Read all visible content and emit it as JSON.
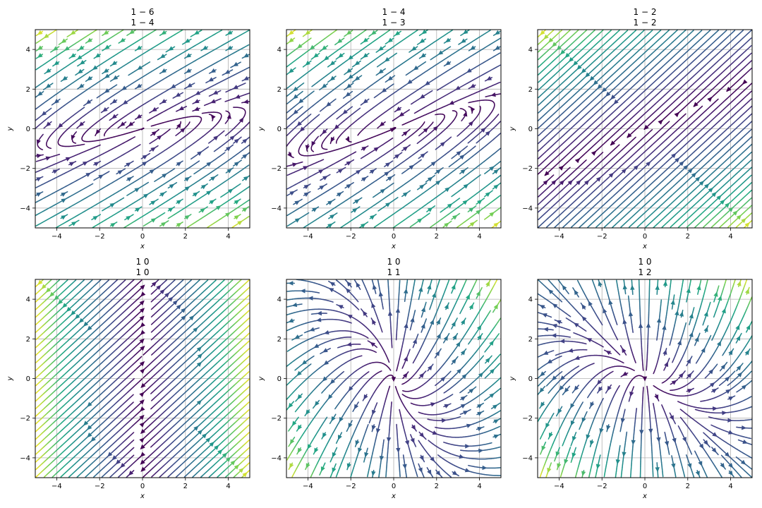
{
  "chart_data": [
    {
      "type": "streamplot",
      "matrix": [
        [
          1,
          -6
        ],
        [
          1,
          -4
        ]
      ],
      "title_rows": [
        "1    − 6",
        "1    − 4"
      ],
      "xlabel": "x",
      "ylabel": "y",
      "xlim": [
        -5,
        5
      ],
      "ylim": [
        -5,
        5
      ],
      "xticks": [
        -4,
        -2,
        0,
        2,
        4
      ],
      "yticks": [
        -4,
        -2,
        0,
        2,
        4
      ],
      "xtick_labels": [
        "−4",
        "−2",
        "0",
        "2",
        "4"
      ],
      "ytick_labels": [
        "−4",
        "−2",
        "0",
        "2",
        "4"
      ],
      "grid": true,
      "colormap": "viridis"
    },
    {
      "type": "streamplot",
      "matrix": [
        [
          1,
          -4
        ],
        [
          1,
          -3
        ]
      ],
      "title_rows": [
        "1    − 4",
        "1    − 3"
      ],
      "xlabel": "x",
      "ylabel": "y",
      "xlim": [
        -5,
        5
      ],
      "ylim": [
        -5,
        5
      ],
      "xticks": [
        -4,
        -2,
        0,
        2,
        4
      ],
      "yticks": [
        -4,
        -2,
        0,
        2,
        4
      ],
      "xtick_labels": [
        "−4",
        "−2",
        "0",
        "2",
        "4"
      ],
      "ytick_labels": [
        "−4",
        "−2",
        "0",
        "2",
        "4"
      ],
      "grid": true,
      "colormap": "viridis"
    },
    {
      "type": "streamplot",
      "matrix": [
        [
          1,
          -2
        ],
        [
          1,
          -2
        ]
      ],
      "title_rows": [
        "1    − 2",
        "1    − 2"
      ],
      "xlabel": "x",
      "ylabel": "y",
      "xlim": [
        -5,
        5
      ],
      "ylim": [
        -5,
        5
      ],
      "xticks": [
        -4,
        -2,
        0,
        2,
        4
      ],
      "yticks": [
        -4,
        -2,
        0,
        2,
        4
      ],
      "xtick_labels": [
        "−4",
        "−2",
        "0",
        "2",
        "4"
      ],
      "ytick_labels": [
        "−4",
        "−2",
        "0",
        "2",
        "4"
      ],
      "grid": true,
      "colormap": "viridis"
    },
    {
      "type": "streamplot",
      "matrix": [
        [
          1,
          0
        ],
        [
          1,
          0
        ]
      ],
      "title_rows": [
        "1    0",
        "1    0"
      ],
      "xlabel": "x",
      "ylabel": "y",
      "xlim": [
        -5,
        5
      ],
      "ylim": [
        -5,
        5
      ],
      "xticks": [
        -4,
        -2,
        0,
        2,
        4
      ],
      "yticks": [
        -4,
        -2,
        0,
        2,
        4
      ],
      "xtick_labels": [
        "−4",
        "−2",
        "0",
        "2",
        "4"
      ],
      "ytick_labels": [
        "−4",
        "−2",
        "0",
        "2",
        "4"
      ],
      "grid": true,
      "colormap": "viridis"
    },
    {
      "type": "streamplot",
      "matrix": [
        [
          1,
          0
        ],
        [
          1,
          1
        ]
      ],
      "title_rows": [
        "1    0",
        "1    1"
      ],
      "xlabel": "x",
      "ylabel": "y",
      "xlim": [
        -5,
        5
      ],
      "ylim": [
        -5,
        5
      ],
      "xticks": [
        -4,
        -2,
        0,
        2,
        4
      ],
      "yticks": [
        -4,
        -2,
        0,
        2,
        4
      ],
      "xtick_labels": [
        "−4",
        "−2",
        "0",
        "2",
        "4"
      ],
      "ytick_labels": [
        "−4",
        "−2",
        "0",
        "2",
        "4"
      ],
      "grid": true,
      "colormap": "viridis"
    },
    {
      "type": "streamplot",
      "matrix": [
        [
          1,
          0
        ],
        [
          1,
          2
        ]
      ],
      "title_rows": [
        "1    0",
        "1    2"
      ],
      "xlabel": "x",
      "ylabel": "y",
      "xlim": [
        -5,
        5
      ],
      "ylim": [
        -5,
        5
      ],
      "xticks": [
        -4,
        -2,
        0,
        2,
        4
      ],
      "yticks": [
        -4,
        -2,
        0,
        2,
        4
      ],
      "xtick_labels": [
        "−4",
        "−2",
        "0",
        "2",
        "4"
      ],
      "ytick_labels": [
        "−4",
        "−2",
        "0",
        "2",
        "4"
      ],
      "grid": true,
      "colormap": "viridis"
    }
  ]
}
